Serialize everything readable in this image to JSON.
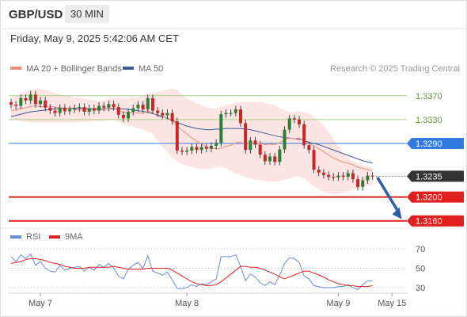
{
  "header": {
    "symbol": "GBP/USD",
    "timeframe": "30 MIN",
    "datetime": "Friday, May 9, 2025 5:42:06 AM CET"
  },
  "legend_main": [
    {
      "label": "MA 20 + Bollinger Bands",
      "color": "#f28b82"
    },
    {
      "label": "MA 50",
      "color": "#3d5a99"
    }
  ],
  "legend_rsi": [
    {
      "label": "RSI",
      "color": "#6b8cd6"
    },
    {
      "label": "9MA",
      "color": "#e0201e"
    }
  ],
  "credit": "Research © 2025 Trading Central",
  "chart_data": {
    "type": "candlestick",
    "y_range": [
      1.3145,
      1.3395
    ],
    "x_labels": [
      {
        "label": "May 7",
        "index": 6
      },
      {
        "label": "May 8",
        "index": 36
      },
      {
        "label": "May 9",
        "index": 67
      },
      {
        "label": "May 15",
        "index": 78
      }
    ],
    "levels": [
      {
        "label": "1.3370",
        "value": 1.337,
        "kind": "resistance"
      },
      {
        "label": "1.3330",
        "value": 1.333,
        "kind": "resistance"
      },
      {
        "label": "1.3290",
        "value": 1.329,
        "kind": "pivot"
      },
      {
        "label": "1.3235",
        "value": 1.3235,
        "kind": "last"
      },
      {
        "label": "1.3200",
        "value": 1.32,
        "kind": "support"
      },
      {
        "label": "1.3160",
        "value": 1.316,
        "kind": "support"
      }
    ],
    "forecast_arrow": {
      "from_index": 75,
      "from_value": 1.3233,
      "to_index": 80,
      "to_value": 1.3163
    },
    "close": [
      1.3355,
      1.3353,
      1.3366,
      1.3362,
      1.3372,
      1.3356,
      1.3362,
      1.335,
      1.3345,
      1.3341,
      1.335,
      1.3344,
      1.3347,
      1.3349,
      1.3351,
      1.3343,
      1.3349,
      1.3345,
      1.3353,
      1.335,
      1.3356,
      1.3351,
      1.3338,
      1.3332,
      1.3343,
      1.3349,
      1.3355,
      1.3347,
      1.3366,
      1.3345,
      1.3341,
      1.3337,
      1.3341,
      1.3327,
      1.3278,
      1.3276,
      1.3278,
      1.3284,
      1.3279,
      1.3284,
      1.3281,
      1.3286,
      1.3291,
      1.3339,
      1.3341,
      1.3341,
      1.3347,
      1.3324,
      1.3279,
      1.3295,
      1.3288,
      1.3271,
      1.326,
      1.3268,
      1.3259,
      1.328,
      1.3313,
      1.3332,
      1.333,
      1.3322,
      1.3287,
      1.3279,
      1.3246,
      1.3241,
      1.3237,
      1.3234,
      1.3233,
      1.3236,
      1.3234,
      1.324,
      1.323,
      1.3217,
      1.3228,
      1.3236,
      1.3235
    ],
    "ma20": [
      1.3345,
      1.3346,
      1.3349,
      1.335,
      1.3352,
      1.3353,
      1.3352,
      1.3351,
      1.3352,
      1.3351,
      1.335,
      1.3349,
      1.3348,
      1.3347,
      1.3346,
      1.3347,
      1.3346,
      1.3346,
      1.3347,
      1.3347,
      1.3348,
      1.335,
      1.3345,
      1.3342,
      1.3341,
      1.3342,
      1.3341,
      1.334,
      1.3345,
      1.3341,
      1.3336,
      1.3334,
      1.3333,
      1.3328,
      1.332,
      1.3312,
      1.3306,
      1.3299,
      1.3294,
      1.3289,
      1.3284,
      1.3282,
      1.3281,
      1.3282,
      1.3285,
      1.3287,
      1.3291,
      1.3292,
      1.3289,
      1.329,
      1.3291,
      1.329,
      1.3288,
      1.3289,
      1.3288,
      1.3291,
      1.3296,
      1.3299,
      1.3298,
      1.3299,
      1.3294,
      1.329,
      1.3286,
      1.3281,
      1.3276,
      1.3271,
      1.3265,
      1.3262,
      1.3258,
      1.3257,
      1.3254,
      1.325,
      1.3248,
      1.3246,
      1.3244
    ],
    "bb_upper": [
      1.3364,
      1.337,
      1.3374,
      1.3377,
      1.338,
      1.3382,
      1.3381,
      1.338,
      1.3378,
      1.3374,
      1.3372,
      1.337,
      1.3369,
      1.3367,
      1.3366,
      1.3365,
      1.3364,
      1.3363,
      1.3362,
      1.3362,
      1.3364,
      1.3366,
      1.3366,
      1.3365,
      1.3366,
      1.3367,
      1.3368,
      1.337,
      1.3373,
      1.3374,
      1.3377,
      1.3378,
      1.338,
      1.3382,
      1.338,
      1.3371,
      1.3365,
      1.3362,
      1.3358,
      1.3354,
      1.3351,
      1.3349,
      1.3348,
      1.3352,
      1.3354,
      1.3356,
      1.3358,
      1.336,
      1.336,
      1.336,
      1.336,
      1.336,
      1.3358,
      1.3356,
      1.3354,
      1.335,
      1.3345,
      1.3343,
      1.3342,
      1.3344,
      1.3342,
      1.334,
      1.3335,
      1.3328,
      1.332,
      1.331,
      1.3298,
      1.3287,
      1.3275,
      1.3266,
      1.326,
      1.3257,
      1.3254,
      1.3251,
      1.325
    ],
    "bb_lower": [
      1.3333,
      1.3329,
      1.3327,
      1.3326,
      1.3325,
      1.3325,
      1.3325,
      1.3325,
      1.3325,
      1.3325,
      1.3325,
      1.3325,
      1.3325,
      1.3325,
      1.3325,
      1.3326,
      1.3326,
      1.3327,
      1.3327,
      1.3328,
      1.3329,
      1.3329,
      1.3326,
      1.3322,
      1.332,
      1.3318,
      1.3315,
      1.3313,
      1.331,
      1.3305,
      1.3295,
      1.3285,
      1.3275,
      1.3266,
      1.3259,
      1.3255,
      1.3252,
      1.325,
      1.3248,
      1.3247,
      1.3247,
      1.3248,
      1.3249,
      1.325,
      1.3248,
      1.3244,
      1.324,
      1.3236,
      1.3233,
      1.3231,
      1.3229,
      1.3228,
      1.3227,
      1.3226,
      1.3226,
      1.3227,
      1.3229,
      1.3231,
      1.3233,
      1.3235,
      1.3231,
      1.3225,
      1.3218,
      1.3213,
      1.3209,
      1.3206,
      1.3205,
      1.3205,
      1.3207,
      1.321,
      1.3213,
      1.3215,
      1.3217,
      1.3219,
      1.322
    ],
    "ma50": [
      1.3335,
      1.3337,
      1.3339,
      1.3341,
      1.3343,
      1.3344,
      1.3345,
      1.3346,
      1.3347,
      1.3348,
      1.3348,
      1.3349,
      1.3349,
      1.3349,
      1.3349,
      1.3349,
      1.3348,
      1.3348,
      1.3348,
      1.3348,
      1.3348,
      1.3348,
      1.3348,
      1.3348,
      1.3347,
      1.3346,
      1.3345,
      1.3344,
      1.3342,
      1.334,
      1.3338,
      1.3335,
      1.3332,
      1.3329,
      1.3325,
      1.3322,
      1.3319,
      1.3317,
      1.3315,
      1.3314,
      1.3313,
      1.3313,
      1.3314,
      1.3314,
      1.3315,
      1.3315,
      1.3315,
      1.3315,
      1.3314,
      1.3313,
      1.3311,
      1.3309,
      1.3307,
      1.3305,
      1.3303,
      1.3301,
      1.33,
      1.3299,
      1.3298,
      1.3297,
      1.3295,
      1.3292,
      1.329,
      1.3288,
      1.3285,
      1.3282,
      1.3279,
      1.3276,
      1.3273,
      1.327,
      1.3267,
      1.3264,
      1.3261,
      1.3259,
      1.3257
    ],
    "rsi_ticks": [
      70,
      50,
      30
    ],
    "rsi_range": [
      20,
      80
    ],
    "rsi": [
      62,
      57,
      64,
      60,
      65,
      53,
      57,
      50,
      47,
      46,
      53,
      48,
      50,
      51,
      52,
      47,
      51,
      48,
      54,
      51,
      55,
      50,
      42,
      39,
      49,
      53,
      56,
      50,
      63,
      47,
      45,
      43,
      46,
      38,
      29,
      29,
      30,
      33,
      31,
      34,
      33,
      36,
      39,
      62,
      62,
      62,
      64,
      52,
      37,
      44,
      41,
      35,
      32,
      36,
      33,
      43,
      55,
      61,
      60,
      56,
      42,
      39,
      32,
      31,
      30,
      30,
      30,
      31,
      31,
      33,
      30,
      28,
      33,
      37,
      37
    ],
    "rsi_ma": [
      55,
      56,
      57,
      59,
      60,
      60,
      59,
      58,
      56,
      55,
      54,
      52,
      51,
      50,
      50,
      50,
      51,
      51,
      51,
      51,
      51,
      52,
      51,
      50,
      49,
      49,
      49,
      49,
      50,
      50,
      50,
      50,
      50,
      48,
      45,
      42,
      39,
      36,
      34,
      33,
      32,
      32,
      33,
      36,
      40,
      44,
      48,
      52,
      52,
      51,
      51,
      50,
      48,
      46,
      44,
      41,
      39,
      41,
      43,
      45,
      47,
      47,
      45,
      43,
      41,
      38,
      36,
      34,
      33,
      32,
      32,
      31,
      31,
      31,
      32
    ]
  }
}
